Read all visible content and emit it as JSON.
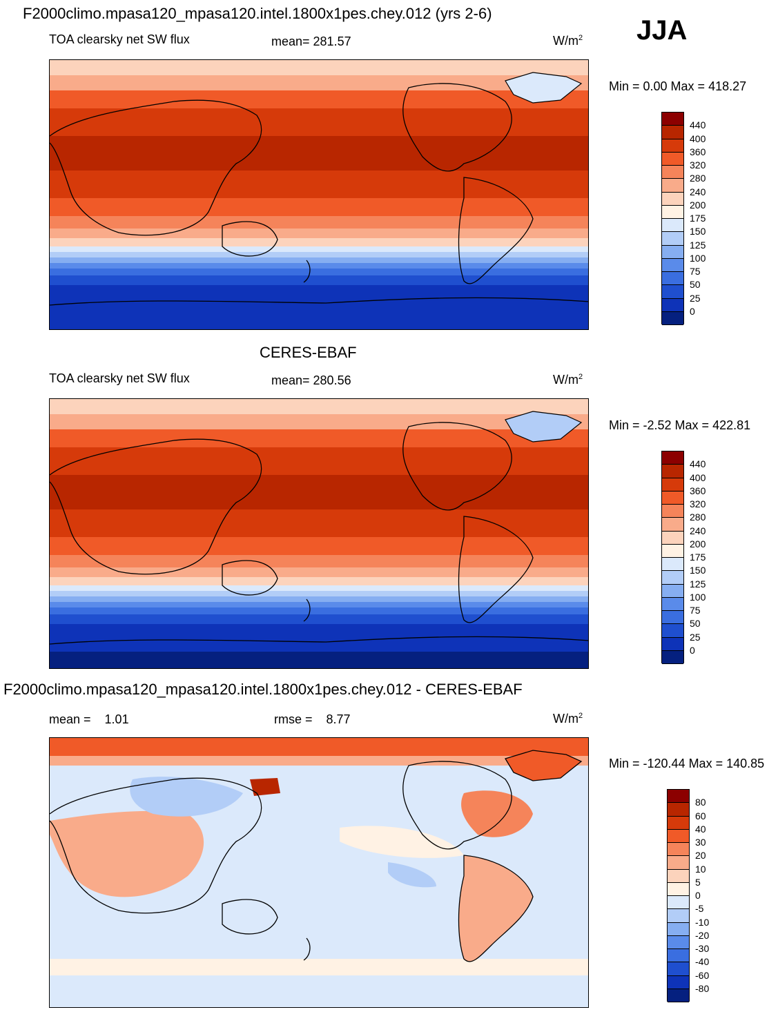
{
  "season": "JJA",
  "units_main": "W/m",
  "units_sup": "2",
  "panels": [
    {
      "title": "F2000climo.mpasa120_mpasa120.intel.1800x1pes.chey.012 (yrs 2-6)",
      "variable": "TOA clearsky net SW flux",
      "stat": "mean= 281.57",
      "minmax": "Min =   0.00 Max = 418.27"
    },
    {
      "title": "CERES-EBAF",
      "variable": "TOA clearsky net SW flux",
      "stat": "mean= 280.56",
      "minmax": "Min =  -2.52 Max = 422.81"
    },
    {
      "title": "F2000climo.mpasa120_mpasa120.intel.1800x1pes.chey.012 - CERES-EBAF",
      "stat_mean": "mean =    1.01",
      "stat_rmse": "rmse =    8.77",
      "minmax": "Min = -120.44 Max = 140.85"
    }
  ],
  "colorbar_main": {
    "labels": [
      "440",
      "400",
      "360",
      "320",
      "280",
      "240",
      "200",
      "175",
      "150",
      "125",
      "100",
      "75",
      "50",
      "25",
      "0"
    ],
    "colors": [
      "#8c0000",
      "#b82600",
      "#d63a0a",
      "#f05a28",
      "#f5845a",
      "#f9ab8a",
      "#fcd3bc",
      "#fff2e4",
      "#dbe9fb",
      "#b2cdf7",
      "#86aef1",
      "#5a8bea",
      "#3a6ee0",
      "#1f4fcf",
      "#0e33b8",
      "#05207f"
    ]
  },
  "colorbar_diff": {
    "labels": [
      "80",
      "60",
      "40",
      "30",
      "20",
      "10",
      "5",
      "0",
      "-5",
      "-10",
      "-20",
      "-30",
      "-40",
      "-60",
      "-80"
    ],
    "colors": [
      "#8c0000",
      "#b82600",
      "#d63a0a",
      "#f05a28",
      "#f5845a",
      "#f9ab8a",
      "#fcd3bc",
      "#fff2e4",
      "#dbe9fb",
      "#b2cdf7",
      "#86aef1",
      "#5a8bea",
      "#3a6ee0",
      "#1f4fcf",
      "#0e33b8",
      "#05207f"
    ]
  }
}
